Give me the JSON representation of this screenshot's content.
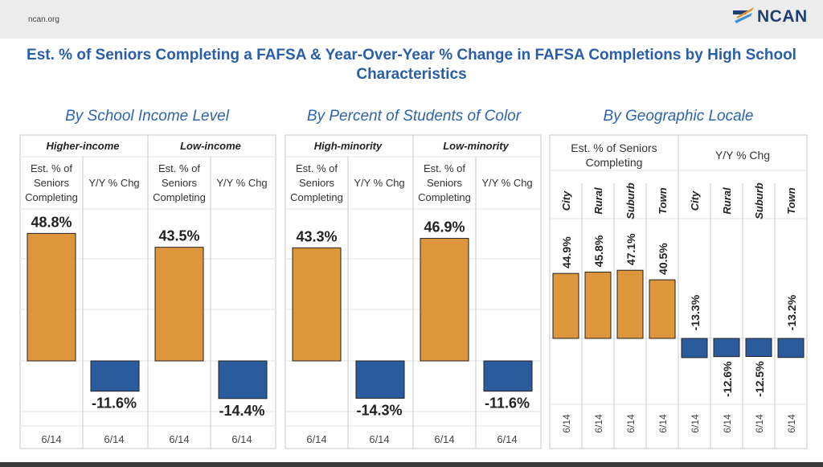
{
  "header": {
    "site": "ncan.org",
    "logo_text": "NCAN",
    "title": "Est. % of Seniors Completing a FAFSA & Year-Over-Year % Change in FAFSA Completions by High School Characteristics"
  },
  "colors": {
    "est": "#dd963c",
    "chg": "#2a5b9c",
    "grid": "#e3e3e3",
    "border": "#c9c9c9"
  },
  "chart_data": [
    {
      "type": "bar",
      "title": "By School Income Level",
      "groups": [
        "Higher-income",
        "Low-income"
      ],
      "column_labels": [
        "Est. % of Seniors Completing",
        "Y/Y % Chg"
      ],
      "series": [
        {
          "name": "Est. % of Seniors Completing",
          "values": [
            48.8,
            43.5
          ],
          "labels": [
            "48.8%",
            "43.5%"
          ]
        },
        {
          "name": "Y/Y % Chg",
          "values": [
            -11.6,
            -14.4
          ],
          "labels": [
            "-11.6%",
            "-14.4%"
          ]
        }
      ],
      "footer": "6/14"
    },
    {
      "type": "bar",
      "title": "By Percent of Students of Color",
      "groups": [
        "High-minority",
        "Low-minority"
      ],
      "column_labels": [
        "Est. % of Seniors Completing",
        "Y/Y % Chg"
      ],
      "series": [
        {
          "name": "Est. % of Seniors Completing",
          "values": [
            43.3,
            46.9
          ],
          "labels": [
            "43.3%",
            "46.9%"
          ]
        },
        {
          "name": "Y/Y % Chg",
          "values": [
            -14.3,
            -11.6
          ],
          "labels": [
            "-14.3%",
            "-11.6%"
          ]
        }
      ],
      "footer": "6/14"
    },
    {
      "type": "bar",
      "title": "By Geographic Locale",
      "groups": [
        "Est. % of Seniors Completing",
        "Y/Y % Chg"
      ],
      "categories": [
        "City",
        "Rural",
        "Suburb",
        "Town"
      ],
      "series": [
        {
          "name": "Est. % of Seniors Completing",
          "values": [
            44.9,
            45.8,
            47.1,
            40.5
          ],
          "labels": [
            "44.9%",
            "45.8%",
            "47.1%",
            "40.5%"
          ]
        },
        {
          "name": "Y/Y % Chg",
          "values": [
            -13.3,
            -12.6,
            -12.5,
            -13.2
          ],
          "labels": [
            "-13.3%",
            "-12.6%",
            "-12.5%",
            "-13.2%"
          ]
        }
      ],
      "footer": "6/14"
    }
  ]
}
